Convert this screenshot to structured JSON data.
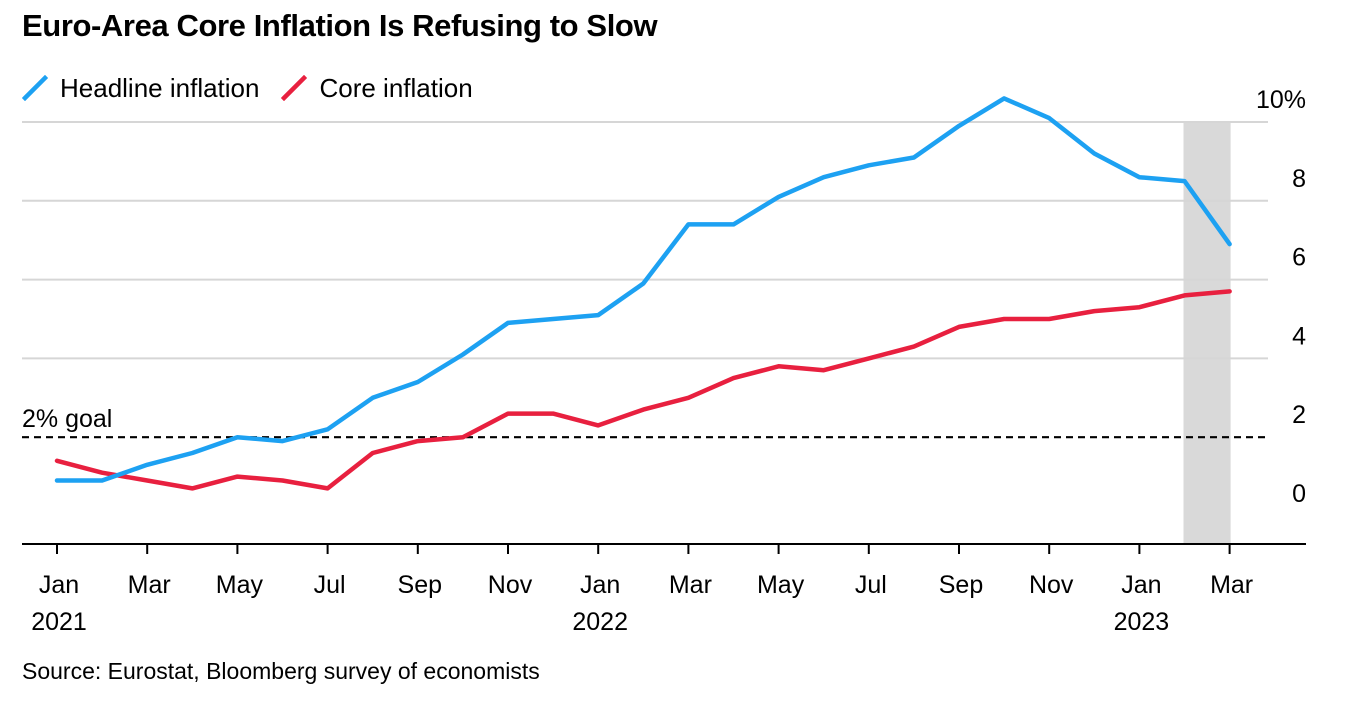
{
  "title": "Euro-Area Core Inflation Is Refusing to Slow",
  "source": "Source: Eurostat, Bloomberg survey of economists",
  "colors": {
    "headline": "#1da1f2",
    "core": "#e8203f",
    "shade": "#d9d9d9",
    "grid": "#d6d6d6"
  },
  "legend": [
    {
      "label": "Headline inflation",
      "color": "#1da1f2"
    },
    {
      "label": "Core inflation",
      "color": "#e8203f"
    }
  ],
  "chart_data": {
    "type": "line",
    "title": "Euro-Area Core Inflation Is Refusing to Slow",
    "x": [
      "2021-01",
      "2021-02",
      "2021-03",
      "2021-04",
      "2021-05",
      "2021-06",
      "2021-07",
      "2021-08",
      "2021-09",
      "2021-10",
      "2021-11",
      "2021-12",
      "2022-01",
      "2022-02",
      "2022-03",
      "2022-04",
      "2022-05",
      "2022-06",
      "2022-07",
      "2022-08",
      "2022-09",
      "2022-10",
      "2022-11",
      "2022-12",
      "2023-01",
      "2023-02",
      "2023-03"
    ],
    "series": [
      {
        "name": "Headline inflation",
        "color": "#1da1f2",
        "values": [
          0.9,
          0.9,
          1.3,
          1.6,
          2.0,
          1.9,
          2.2,
          3.0,
          3.4,
          4.1,
          4.9,
          5.0,
          5.1,
          5.9,
          7.4,
          7.4,
          8.1,
          8.6,
          8.9,
          9.1,
          9.9,
          10.6,
          10.1,
          9.2,
          8.6,
          8.5,
          6.9
        ]
      },
      {
        "name": "Core inflation",
        "color": "#e8203f",
        "values": [
          1.4,
          1.1,
          0.9,
          0.7,
          1.0,
          0.9,
          0.7,
          1.6,
          1.9,
          2.0,
          2.6,
          2.6,
          2.3,
          2.7,
          3.0,
          3.5,
          3.8,
          3.7,
          4.0,
          4.3,
          4.8,
          5.0,
          5.0,
          5.2,
          5.3,
          5.6,
          5.7
        ]
      }
    ],
    "reference_line": {
      "value": 2,
      "label": "2% goal",
      "style": "dashed"
    },
    "shaded_region": {
      "from": "2023-02",
      "to": "2023-03",
      "ylim": [
        0,
        10
      ]
    },
    "ylim": [
      -0.7,
      10.8
    ],
    "yticks": [
      0,
      2,
      4,
      6,
      8,
      10
    ],
    "ytick_labels": [
      "0",
      "2",
      "4",
      "6",
      "8",
      "10%"
    ],
    "y_axis_position": "right",
    "xticks": [
      {
        "x": "2021-01",
        "month": "Jan",
        "year": "2021"
      },
      {
        "x": "2021-03",
        "month": "Mar",
        "year": ""
      },
      {
        "x": "2021-05",
        "month": "May",
        "year": ""
      },
      {
        "x": "2021-07",
        "month": "Jul",
        "year": ""
      },
      {
        "x": "2021-09",
        "month": "Sep",
        "year": ""
      },
      {
        "x": "2021-11",
        "month": "Nov",
        "year": ""
      },
      {
        "x": "2022-01",
        "month": "Jan",
        "year": "2022"
      },
      {
        "x": "2022-03",
        "month": "Mar",
        "year": ""
      },
      {
        "x": "2022-05",
        "month": "May",
        "year": ""
      },
      {
        "x": "2022-07",
        "month": "Jul",
        "year": ""
      },
      {
        "x": "2022-09",
        "month": "Sep",
        "year": ""
      },
      {
        "x": "2022-11",
        "month": "Nov",
        "year": ""
      },
      {
        "x": "2023-01",
        "month": "Jan",
        "year": "2023"
      },
      {
        "x": "2023-03",
        "month": "Mar",
        "year": ""
      }
    ],
    "grid": true,
    "xlabel": "",
    "ylabel": ""
  }
}
